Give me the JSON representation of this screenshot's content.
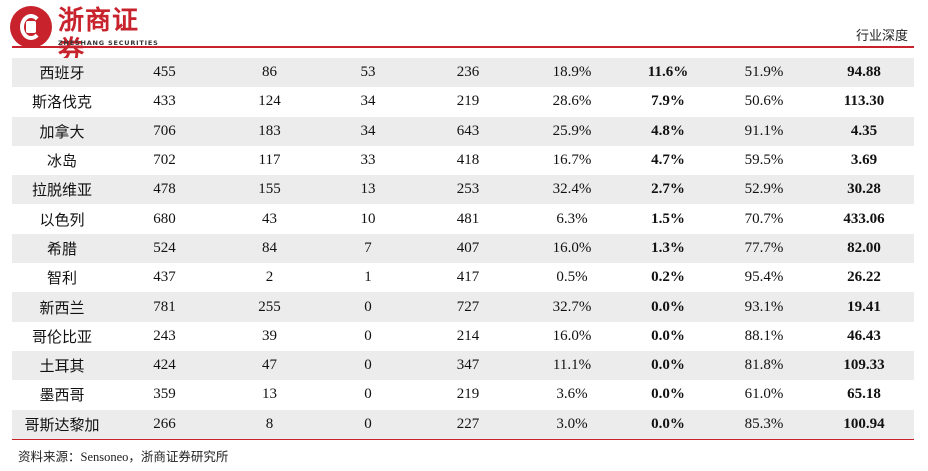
{
  "header": {
    "brand_name": "浙商证券",
    "brand_sub": "ZHESHANG SECURITIES",
    "report_type": "行业深度"
  },
  "table": {
    "rows": [
      [
        "西班牙",
        "455",
        "86",
        "53",
        "236",
        "18.9%",
        "11.6%",
        "51.9%",
        "94.88"
      ],
      [
        "斯洛伐克",
        "433",
        "124",
        "34",
        "219",
        "28.6%",
        "7.9%",
        "50.6%",
        "113.30"
      ],
      [
        "加拿大",
        "706",
        "183",
        "34",
        "643",
        "25.9%",
        "4.8%",
        "91.1%",
        "4.35"
      ],
      [
        "冰岛",
        "702",
        "117",
        "33",
        "418",
        "16.7%",
        "4.7%",
        "59.5%",
        "3.69"
      ],
      [
        "拉脱维亚",
        "478",
        "155",
        "13",
        "253",
        "32.4%",
        "2.7%",
        "52.9%",
        "30.28"
      ],
      [
        "以色列",
        "680",
        "43",
        "10",
        "481",
        "6.3%",
        "1.5%",
        "70.7%",
        "433.06"
      ],
      [
        "希腊",
        "524",
        "84",
        "7",
        "407",
        "16.0%",
        "1.3%",
        "77.7%",
        "82.00"
      ],
      [
        "智利",
        "437",
        "2",
        "1",
        "417",
        "0.5%",
        "0.2%",
        "95.4%",
        "26.22"
      ],
      [
        "新西兰",
        "781",
        "255",
        "0",
        "727",
        "32.7%",
        "0.0%",
        "93.1%",
        "19.41"
      ],
      [
        "哥伦比亚",
        "243",
        "39",
        "0",
        "214",
        "16.0%",
        "0.0%",
        "88.1%",
        "46.43"
      ],
      [
        "土耳其",
        "424",
        "47",
        "0",
        "347",
        "11.1%",
        "0.0%",
        "81.8%",
        "109.33"
      ],
      [
        "墨西哥",
        "359",
        "13",
        "0",
        "219",
        "3.6%",
        "0.0%",
        "61.0%",
        "65.18"
      ],
      [
        "哥斯达黎加",
        "266",
        "8",
        "0",
        "227",
        "3.0%",
        "0.0%",
        "85.3%",
        "100.94"
      ]
    ]
  },
  "source_note": "资料来源：Sensoneo，浙商证券研究所"
}
